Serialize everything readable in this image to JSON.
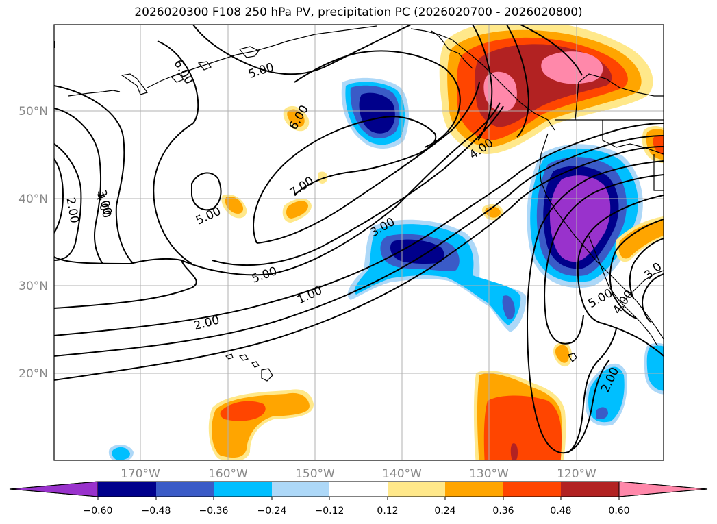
{
  "title": "2026020300 F108 250 hPa PV, precipitation PC (2026020700 - 2026020800)",
  "latitude_labels": [
    "50°N",
    "40°N",
    "30°N",
    "20°N"
  ],
  "longitude_labels": [
    "170°W",
    "160°W",
    "150°W",
    "140°W",
    "130°W",
    "120°W"
  ],
  "colorbar": {
    "ticks": [
      "−0.60",
      "−0.48",
      "−0.36",
      "−0.24",
      "−0.12",
      "0.12",
      "0.24",
      "0.36",
      "0.48",
      "0.60"
    ],
    "colors": [
      "#9932cc",
      "#00008b",
      "#3a5bc7",
      "#00bfff",
      "#add8f8",
      "#ffffff",
      "#ffe88a",
      "#ffa500",
      "#ff4500",
      "#b22222",
      "#ff88aa"
    ]
  },
  "contour_labels": {
    "l1": "6.00",
    "l2": "5.00",
    "l3": "6.00",
    "l4": "4.00",
    "l5": "7.00",
    "l6": "5.00",
    "l7": "3.00",
    "l8": "5.00",
    "l9": "1.00",
    "l10": "2.00",
    "l11": "2.00",
    "l12": "3.00",
    "l13": "4.00",
    "l14": "5.00",
    "l15": "4.00",
    "l16": "3.0",
    "l17": "2.00"
  }
}
